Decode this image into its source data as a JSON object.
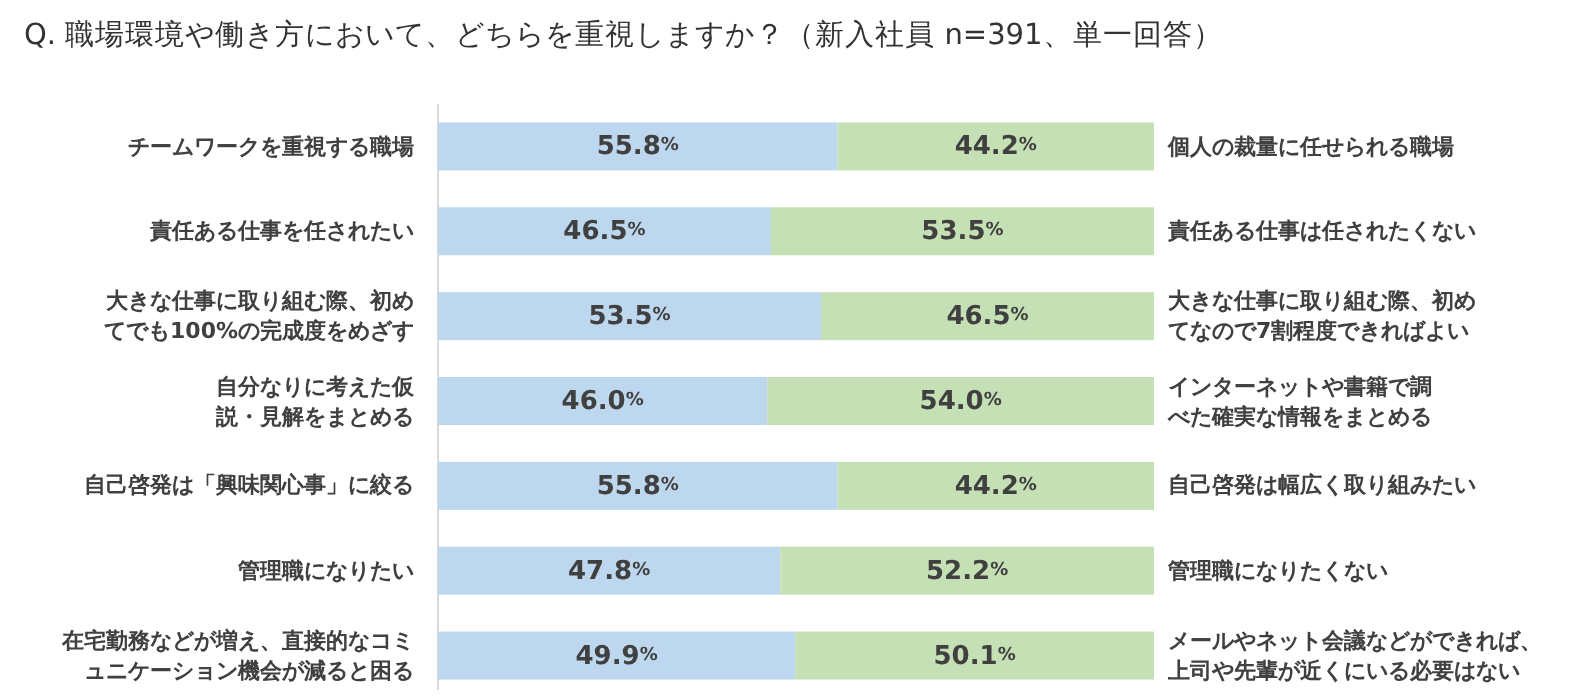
{
  "chart_data": {
    "type": "bar",
    "orientation": "horizontal",
    "stacked": true,
    "title": "Q.  職場環境や働き方において、どちらを重視しますか？（新入社員 n=391、単一回答）",
    "categories": [
      "チームワークを重視する職場",
      "責任ある仕事を任されたい",
      "大きな仕事に取り組む際、初めてでも100%の完成度をめざす",
      "自分なりに考えた仮説・見解をまとめる",
      "自己啓発は「興味関心事」に絞る",
      "管理職になりたい",
      "在宅勤務などが増え、直接的なコミュニケーション機会が減ると困る"
    ],
    "series": [
      {
        "color": "#bdd7ee",
        "values": [
          55.8,
          46.5,
          53.5,
          46.0,
          55.8,
          47.8,
          49.9
        ],
        "value_labels": [
          "55.8%",
          "46.5%",
          "53.5%",
          "46.0%",
          "55.8%",
          "47.8%",
          "49.9%"
        ]
      },
      {
        "color": "#c5e0b4",
        "values": [
          44.2,
          53.5,
          46.5,
          54.0,
          44.2,
          52.2,
          50.1
        ],
        "value_labels": [
          "44.2%",
          "53.5%",
          "46.5%",
          "54.0%",
          "44.2%",
          "52.2%",
          "50.1%"
        ]
      }
    ],
    "xlim": [
      0,
      100
    ],
    "annotations": [
      "個人の裁量に任せられる職場",
      "責任ある仕事は任されたくない",
      "大きな仕事に取り組む際、初めてなので7割程度できればよい",
      "インターネットや書籍で調べた確実な情報をまとめる",
      "自己啓発は幅広く取り組みたい",
      "管理職になりたくない",
      "メールやネット会議などができれば、上司や先輩が近くにいる必要はない"
    ]
  }
}
